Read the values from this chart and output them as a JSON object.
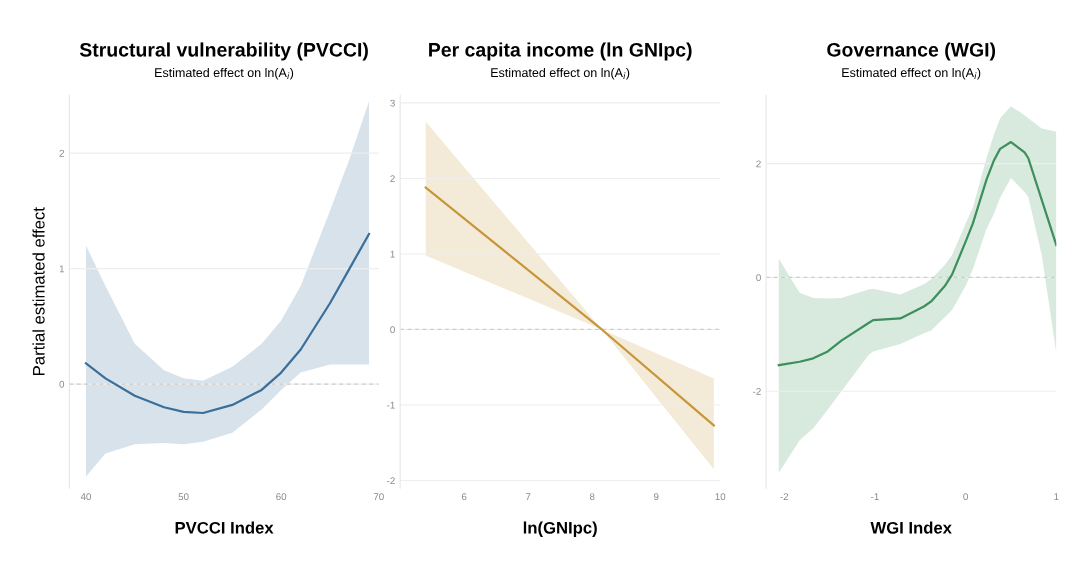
{
  "chart_data": [
    {
      "type": "line",
      "title": "Structural vulnerability (PVCCI)",
      "subtitle": "Estimated effect on ln(A$_{i}$)",
      "xlabel": "PVCCI Index",
      "ylabel": "Partial estimated effect",
      "xlim": [
        38.3,
        70
      ],
      "xticks": [
        40,
        50,
        60,
        70
      ],
      "ylim": [
        -0.9,
        2.5
      ],
      "yticks": [
        0,
        1,
        2
      ],
      "grid": "y",
      "ref_lines": [
        {
          "axis": "y",
          "value": 0,
          "line_style": "dashed",
          "color": "#cccccc"
        }
      ],
      "series": [
        {
          "color": "#3a6f9a",
          "x": [
            40,
            42,
            45,
            48,
            50,
            52,
            55,
            58,
            60,
            62,
            65,
            67,
            69
          ],
          "values": [
            0.18,
            0.05,
            -0.1,
            -0.2,
            -0.24,
            -0.25,
            -0.18,
            -0.05,
            0.1,
            0.3,
            0.7,
            1.0,
            1.3
          ],
          "lower": [
            -0.8,
            -0.6,
            -0.52,
            -0.51,
            -0.52,
            -0.5,
            -0.42,
            -0.22,
            -0.05,
            0.1,
            0.17,
            0.17,
            0.17
          ],
          "upper": [
            1.2,
            0.85,
            0.35,
            0.12,
            0.05,
            0.03,
            0.15,
            0.35,
            0.55,
            0.85,
            1.5,
            1.95,
            2.45
          ]
        }
      ]
    },
    {
      "type": "line",
      "title": "Per capita income (ln GNIpc)",
      "subtitle": "Estimated effect on ln(A$_{i}$)",
      "xlabel": "ln(GNIpc)",
      "xlim": [
        5,
        10
      ],
      "xticks": [
        6,
        7,
        8,
        9,
        10
      ],
      "ylim": [
        -2.1,
        3.1
      ],
      "yticks": [
        -2,
        -1,
        0,
        1,
        2,
        3
      ],
      "grid": "y",
      "ref_lines": [
        {
          "axis": "y",
          "value": 0,
          "line_style": "dashed",
          "color": "#cccccc"
        }
      ],
      "series": [
        {
          "color": "#c8963a",
          "x": [
            5.4,
            8.15,
            9.9
          ],
          "values": [
            1.88,
            0,
            -1.27
          ],
          "lower": [
            0.98,
            0,
            -1.85
          ],
          "upper": [
            2.75,
            0,
            -0.65
          ]
        }
      ]
    },
    {
      "type": "line",
      "title": "Governance (WGI)",
      "subtitle": "Estimated effect on ln(A$_{i}$)",
      "xlabel": "WGI Index",
      "xlim": [
        -2.2,
        1
      ],
      "xticks": [
        -2,
        -1,
        0,
        1
      ],
      "ylim": [
        -3.7,
        3.2
      ],
      "yticks": [
        -2,
        0,
        2
      ],
      "grid": "y",
      "ref_lines": [
        {
          "axis": "y",
          "value": 0,
          "line_style": "dashed",
          "color": "#cccccc"
        }
      ],
      "series": [
        {
          "color": "#3d8f5c",
          "x": [
            -2.06,
            -1.83,
            -1.68,
            -1.52,
            -1.37,
            -1.07,
            -1.02,
            -0.72,
            -0.46,
            -0.38,
            -0.23,
            -0.15,
            0,
            0.08,
            0.23,
            0.31,
            0.38,
            0.5,
            0.65,
            0.69,
            0.84,
            1.0
          ],
          "values": [
            -1.54,
            -1.48,
            -1.42,
            -1.3,
            -1.11,
            -0.8,
            -0.75,
            -0.72,
            -0.51,
            -0.42,
            -0.15,
            0.05,
            0.63,
            0.95,
            1.72,
            2.05,
            2.26,
            2.38,
            2.2,
            2.1,
            1.36,
            0.57
          ],
          "lower": [
            -3.43,
            -2.86,
            -2.65,
            -2.32,
            -2.0,
            -1.36,
            -1.3,
            -1.17,
            -0.98,
            -0.93,
            -0.7,
            -0.57,
            -0.15,
            0.15,
            0.85,
            1.11,
            1.4,
            1.75,
            1.5,
            1.42,
            0.39,
            -1.33
          ],
          "upper": [
            0.33,
            -0.27,
            -0.36,
            -0.37,
            -0.36,
            -0.21,
            -0.2,
            -0.3,
            -0.12,
            -0.03,
            0.22,
            0.39,
            0.95,
            1.23,
            2.1,
            2.5,
            2.8,
            3.01,
            2.85,
            2.8,
            2.62,
            2.56
          ]
        }
      ]
    }
  ]
}
